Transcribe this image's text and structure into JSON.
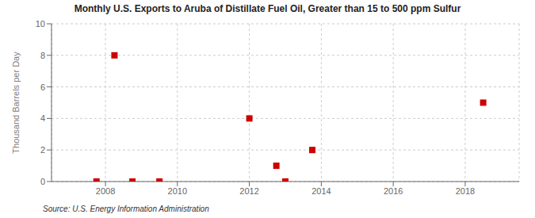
{
  "chart_data": {
    "type": "scatter",
    "title": "Monthly U.S. Exports to Aruba of Distillate Fuel Oil, Greater than 15 to 500 ppm Sulfur",
    "ylabel": "Thousand Barrels per Day",
    "annotation": "Source: U.S. Energy Information Administration",
    "x": [
      2007.75,
      2008.25,
      2008.75,
      2009.5,
      2012.0,
      2012.75,
      2013.0,
      2013.75,
      2018.5
    ],
    "values": [
      0.0,
      8.0,
      0.0,
      0.0,
      4.0,
      1.0,
      0.0,
      2.0,
      5.0
    ],
    "color": "#cc0000",
    "marker": "square",
    "xlim": [
      2006.5,
      2019.5
    ],
    "ylim": [
      0,
      10
    ],
    "xticks": [
      2008,
      2010,
      2012,
      2014,
      2016,
      2018
    ],
    "yticks": [
      0,
      2,
      4,
      6,
      8,
      10
    ],
    "grid": true
  }
}
